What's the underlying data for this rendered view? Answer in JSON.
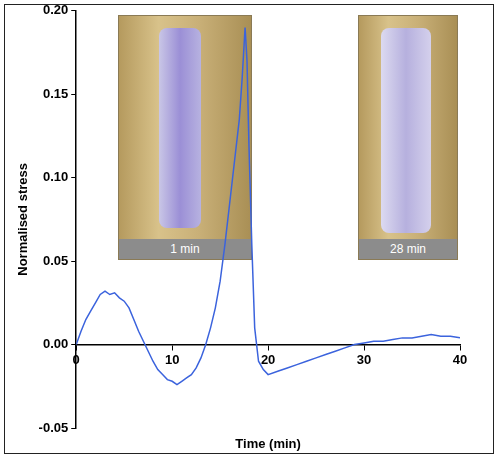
{
  "chart_data": {
    "type": "line",
    "x_label": "Time (min)",
    "y_label": "Normalised stress",
    "annotations": [
      "1 min",
      "28 min"
    ],
    "x": [
      0,
      0.5,
      1,
      1.5,
      2,
      2.5,
      3,
      3.5,
      4,
      4.5,
      5,
      5.5,
      6,
      6.5,
      7,
      7.5,
      8,
      8.5,
      9,
      9.5,
      10,
      10.5,
      11,
      11.5,
      12,
      12.5,
      13,
      13.5,
      14,
      14.5,
      15,
      15.5,
      16,
      16.5,
      17,
      17.3,
      17.6,
      17.8,
      18,
      18.3,
      18.6,
      19,
      19.5,
      20,
      21,
      22,
      23,
      24,
      25,
      26,
      27,
      28,
      29,
      30,
      31,
      32,
      33,
      34,
      35,
      36,
      37,
      38,
      39,
      40
    ],
    "values": [
      0,
      0.008,
      0.015,
      0.02,
      0.025,
      0.03,
      0.032,
      0.03,
      0.031,
      0.028,
      0.026,
      0.022,
      0.015,
      0.008,
      0.002,
      -0.004,
      -0.01,
      -0.015,
      -0.018,
      -0.021,
      -0.022,
      -0.024,
      -0.022,
      -0.02,
      -0.018,
      -0.014,
      -0.008,
      0,
      0.01,
      0.022,
      0.038,
      0.06,
      0.085,
      0.11,
      0.135,
      0.16,
      0.19,
      0.17,
      0.12,
      0.06,
      0.01,
      -0.01,
      -0.015,
      -0.018,
      -0.016,
      -0.014,
      -0.012,
      -0.01,
      -0.008,
      -0.006,
      -0.004,
      -0.002,
      0,
      0.001,
      0.002,
      0.002,
      0.003,
      0.004,
      0.004,
      0.005,
      0.006,
      0.005,
      0.005,
      0.004
    ],
    "color": "#3b63dd",
    "xlim": [
      0,
      40
    ],
    "xticks": [
      0,
      10,
      20,
      30,
      40
    ],
    "ylim": [
      -0.05,
      0.2
    ],
    "yticks": [
      -0.05,
      {
        "value": 0,
        "label": "0.00"
      },
      0.05,
      {
        "value": 0.1,
        "label": "0.10"
      },
      0.15,
      {
        "value": 0.2,
        "label": "0.20"
      }
    ],
    "grid": false
  }
}
